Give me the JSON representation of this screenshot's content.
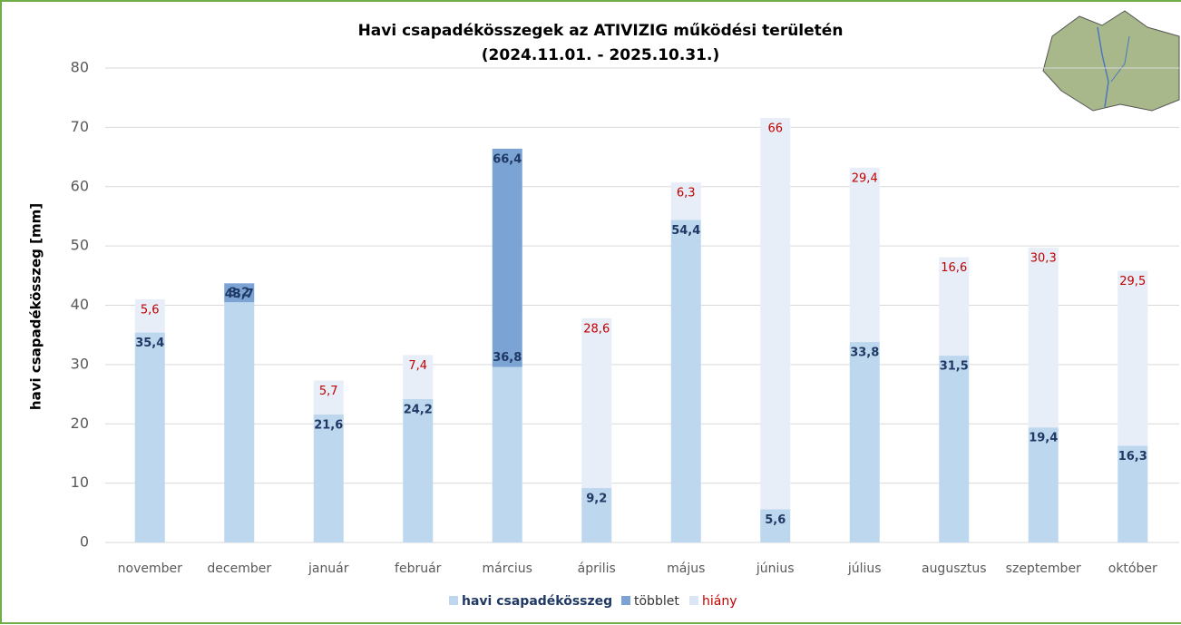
{
  "chart_data": {
    "type": "stacked-bar",
    "title": "Havi csapadékösszegek az ATIVIZIG működési területén",
    "subtitle": "(2024.11.01. - 2025.10.31.)",
    "y_label": "havi csapadékösszeg [mm]",
    "categories": [
      "november",
      "december",
      "január",
      "február",
      "március",
      "április",
      "május",
      "június",
      "július",
      "augusztus",
      "szeptember",
      "október"
    ],
    "ylim": [
      0,
      80
    ],
    "yticks": [
      0,
      10,
      20,
      30,
      40,
      50,
      60,
      70,
      80
    ],
    "grid": true,
    "legend": "bottom",
    "series": [
      {
        "name": "havi csapadékösszeg",
        "color": "#bdd7ee",
        "label_color": "#1f3864",
        "values": [
          35.4,
          40.5,
          21.6,
          24.2,
          29.6,
          9.2,
          54.4,
          5.6,
          33.8,
          31.5,
          19.4,
          16.3
        ],
        "value_labels": [
          "35,4",
          null,
          "21,6",
          "24,2",
          null,
          "9,2",
          "54,4",
          "5,6",
          "33,8",
          "31,5",
          "19,4",
          "16,3"
        ]
      },
      {
        "name": "többlet",
        "color": "#7ba4d4",
        "label_color": "#1f3864",
        "values": [
          null,
          3.2,
          null,
          null,
          36.8,
          null,
          null,
          null,
          null,
          null,
          null,
          null
        ],
        "value_labels": [
          null,
          "3,2",
          null,
          null,
          "36,8",
          null,
          null,
          null,
          null,
          null,
          null,
          null
        ]
      },
      {
        "name": "hiány",
        "color": "#e7eef8",
        "label_color": "#c00000",
        "values": [
          5.6,
          null,
          5.7,
          7.4,
          null,
          28.6,
          6.3,
          66,
          29.4,
          16.6,
          30.3,
          29.5
        ],
        "value_labels": [
          "5,6",
          null,
          "5,7",
          "7,4",
          null,
          "28,6",
          "6,3",
          "66",
          "29,4",
          "16,6",
          "30,3",
          "29,5"
        ]
      }
    ],
    "annotations": [
      {
        "category": "december",
        "value": 43.7,
        "label": "43,7"
      },
      {
        "category": "március",
        "value": 66.4,
        "label": "66,4"
      }
    ]
  }
}
